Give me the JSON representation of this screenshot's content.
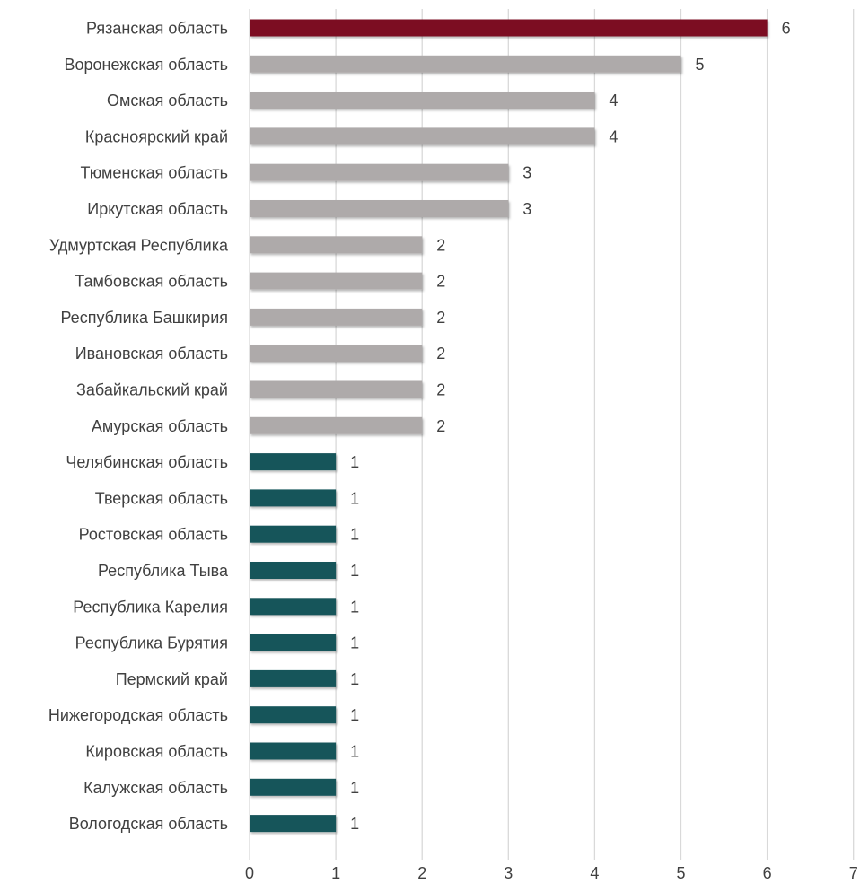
{
  "chart_data": {
    "type": "bar",
    "orientation": "horizontal",
    "title": "",
    "xlabel": "",
    "ylabel": "",
    "xlim": [
      0,
      7
    ],
    "x_ticks": [
      0,
      1,
      2,
      3,
      4,
      5,
      6,
      7
    ],
    "grid": "vertical",
    "legend": "none",
    "categories": [
      "Рязанская область",
      "Воронежская область",
      "Омская область",
      "Красноярский край",
      "Тюменская область",
      "Иркутская область",
      "Удмуртская Республика",
      "Тамбовская область",
      "Республика Башкирия",
      "Ивановская область",
      "Забайкальский край",
      "Амурская область",
      "Челябинская область",
      "Тверская область",
      "Ростовская область",
      "Республика Тыва",
      "Республика Карелия",
      "Республика Бурятия ",
      "Пермский край",
      "Нижегородская область",
      "Кировская область",
      "Калужская область",
      "Вологодская область"
    ],
    "values": [
      6,
      5,
      4,
      4,
      3,
      3,
      2,
      2,
      2,
      2,
      2,
      2,
      1,
      1,
      1,
      1,
      1,
      1,
      1,
      1,
      1,
      1,
      1
    ],
    "colors": {
      "highlight": "#7b1120",
      "medium": "#aeaaaa",
      "low": "#17545a",
      "grid": "#d9d9d9",
      "text": "#404040"
    }
  }
}
